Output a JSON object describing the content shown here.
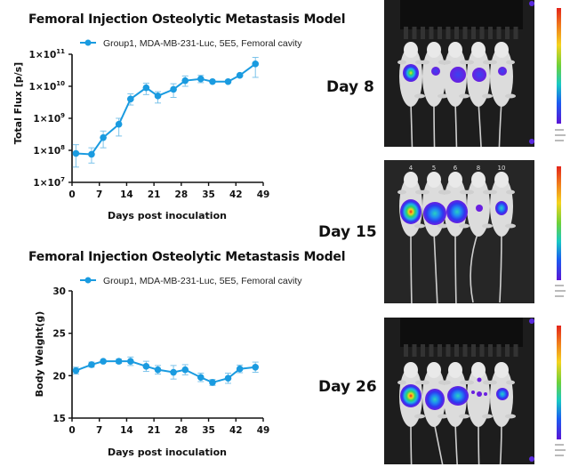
{
  "chart_data": [
    {
      "type": "line",
      "title": "Femoral Injection Osteolytic Metastasis Model",
      "xlabel": "Days post inoculation",
      "ylabel": "Total Flux [p/s]",
      "yscale": "log",
      "xlim": [
        0,
        49
      ],
      "ylim": [
        10000000.0,
        100000000000.0
      ],
      "xticks": [
        0,
        7,
        14,
        21,
        28,
        35,
        42,
        49
      ],
      "yticks": [
        {
          "value": 100000000000.0,
          "base": "1×10",
          "exp": "11"
        },
        {
          "value": 10000000000.0,
          "base": "1×10",
          "exp": "10"
        },
        {
          "value": 1000000000.0,
          "base": "1×10",
          "exp": "9"
        },
        {
          "value": 100000000.0,
          "base": "1×10",
          "exp": "8"
        },
        {
          "value": 10000000.0,
          "base": "1×10",
          "exp": "7"
        }
      ],
      "grid": false,
      "legend_position": "top",
      "series": [
        {
          "name": "Group1, MDA-MB-231-Luc, 5E5, Femoral cavity",
          "color": "#1a9be0",
          "x": [
            1,
            5,
            8,
            12,
            15,
            19,
            22,
            26,
            29,
            33,
            36,
            40,
            43,
            47
          ],
          "y": [
            80000000.0,
            75000000.0,
            250000000.0,
            650000000.0,
            4000000000.0,
            9000000000.0,
            5000000000.0,
            8000000000.0,
            15000000000.0,
            17000000000.0,
            14000000000.0,
            14000000000.0,
            22000000000.0,
            50000000000.0
          ],
          "err_low": [
            30000000.0,
            40000000.0,
            120000000.0,
            280000000.0,
            2600000000.0,
            5500000000.0,
            3000000000.0,
            4500000000.0,
            10000000000.0,
            13000000000.0,
            13000000000.0,
            13000000000.0,
            20000000000.0,
            19000000000.0
          ],
          "err_high": [
            150000000.0,
            120000000.0,
            400000000.0,
            1000000000.0,
            5800000000.0,
            12500000000.0,
            6800000000.0,
            12000000000.0,
            21000000000.0,
            22000000000.0,
            15000000000.0,
            15000000000.0,
            24000000000.0,
            80000000000.0
          ]
        }
      ]
    },
    {
      "type": "line",
      "title": "Femoral Injection Osteolytic Metastasis Model",
      "xlabel": "Days post inoculation",
      "ylabel": "Body Weight(g)",
      "yscale": "linear",
      "xlim": [
        0,
        49
      ],
      "ylim": [
        15,
        30
      ],
      "xticks": [
        0,
        7,
        14,
        21,
        28,
        35,
        42,
        49
      ],
      "yticks": [
        30,
        25,
        20,
        15
      ],
      "grid": false,
      "legend_position": "top",
      "series": [
        {
          "name": "Group1, MDA-MB-231-Luc, 5E5, Femoral cavity",
          "color": "#1a9be0",
          "x": [
            1,
            5,
            8,
            12,
            15,
            19,
            22,
            26,
            29,
            33,
            36,
            40,
            43,
            47
          ],
          "y": [
            20.6,
            21.3,
            21.7,
            21.7,
            21.7,
            21.1,
            20.7,
            20.4,
            20.7,
            19.8,
            19.2,
            19.7,
            20.8,
            21.0
          ],
          "err": [
            0.4,
            0.3,
            0.15,
            0.25,
            0.5,
            0.6,
            0.5,
            0.8,
            0.6,
            0.5,
            0.35,
            0.6,
            0.45,
            0.6
          ]
        }
      ]
    }
  ],
  "panels": [
    {
      "day_label": "Day 8",
      "mouse_labels": []
    },
    {
      "day_label": "Day 15",
      "mouse_labels": [
        "4",
        "5",
        "6",
        "8",
        "10"
      ]
    },
    {
      "day_label": "Day 26",
      "mouse_labels": []
    }
  ]
}
